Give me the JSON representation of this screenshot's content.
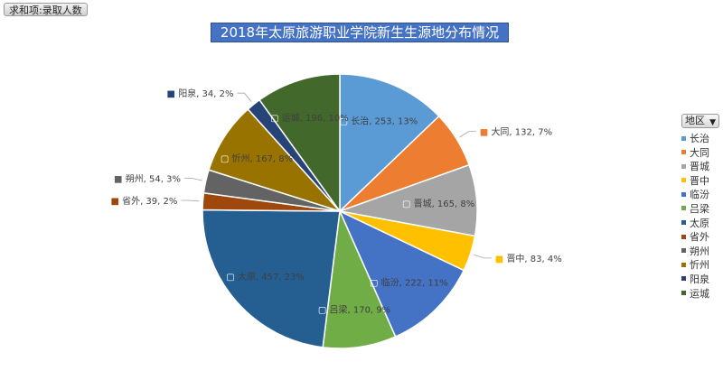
{
  "field_button": {
    "label": "求和项:录取人数"
  },
  "legend": {
    "button_label": "地区"
  },
  "chart_data": {
    "type": "pie",
    "title": "2018年太原旅游职业学院新生生源地分布情况",
    "legend_position": "right",
    "slices": [
      {
        "name": "长治",
        "value": 253,
        "percent": "13%",
        "color": "#5b9bd5"
      },
      {
        "name": "大同",
        "value": 132,
        "percent": "7%",
        "color": "#ed7d31"
      },
      {
        "name": "晋城",
        "value": 165,
        "percent": "8%",
        "color": "#a5a5a5"
      },
      {
        "name": "晋中",
        "value": 83,
        "percent": "4%",
        "color": "#ffc000"
      },
      {
        "name": "临汾",
        "value": 222,
        "percent": "11%",
        "color": "#4472c4"
      },
      {
        "name": "吕梁",
        "value": 170,
        "percent": "9%",
        "color": "#70ad47"
      },
      {
        "name": "太原",
        "value": 457,
        "percent": "23%",
        "color": "#255e91"
      },
      {
        "name": "省外",
        "value": 39,
        "percent": "2%",
        "color": "#9e480e"
      },
      {
        "name": "朔州",
        "value": 54,
        "percent": "3%",
        "color": "#636363"
      },
      {
        "name": "忻州",
        "value": 167,
        "percent": "8%",
        "color": "#997300"
      },
      {
        "name": "阳泉",
        "value": 34,
        "percent": "2%",
        "color": "#264478"
      },
      {
        "name": "运城",
        "value": 196,
        "percent": "10%",
        "color": "#43682b"
      }
    ]
  }
}
